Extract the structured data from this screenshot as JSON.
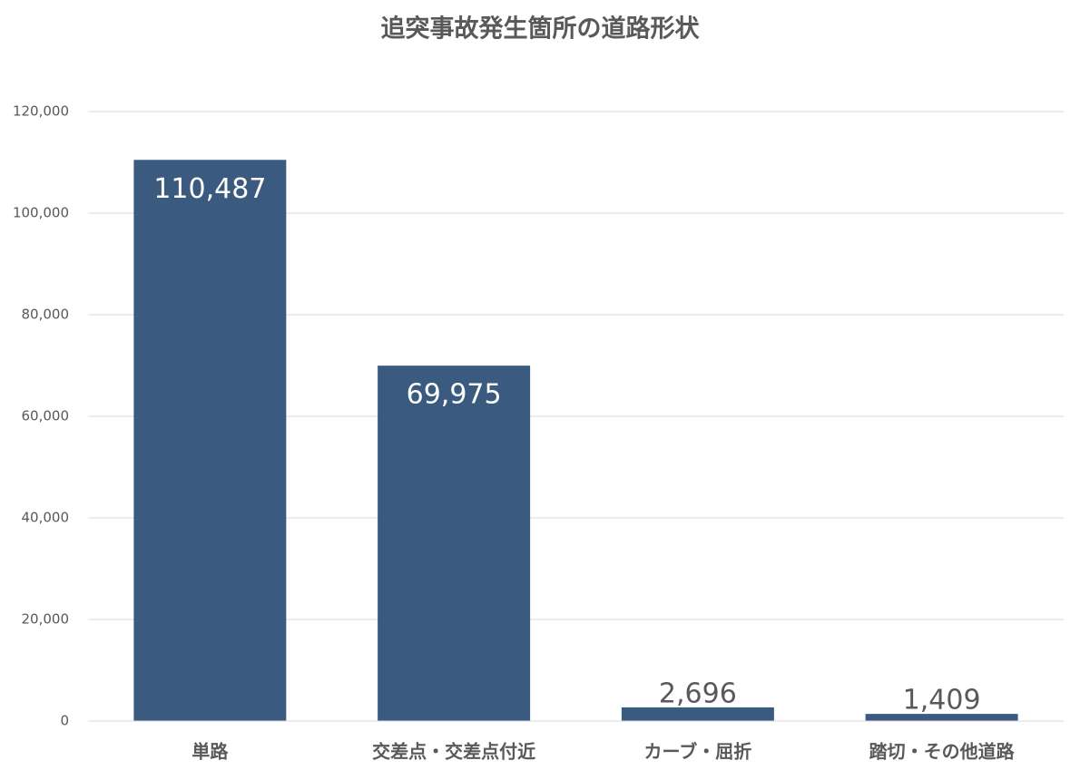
{
  "chart_data": {
    "type": "bar",
    "title": "追突事故発生箇所の道路形状",
    "categories": [
      "単路",
      "交差点・交差点付近",
      "カーブ・屈折",
      "踏切・その他道路"
    ],
    "values": [
      110487,
      69975,
      2696,
      1409
    ],
    "value_labels": [
      "110,487",
      "69,975",
      "2,696",
      "1,409"
    ],
    "color": "#3a5a80",
    "ylim": [
      0,
      120000
    ],
    "yticks": [
      0,
      {
        "value": 20000,
        "label": "20,000"
      },
      {
        "value": 40000,
        "label": "40,000"
      },
      {
        "value": 60000,
        "label": "60,000"
      },
      {
        "value": 80000,
        "label": "80,000"
      },
      {
        "value": 100000,
        "label": "100,000"
      },
      {
        "value": 120000,
        "label": "120,000"
      }
    ],
    "grid": true
  }
}
